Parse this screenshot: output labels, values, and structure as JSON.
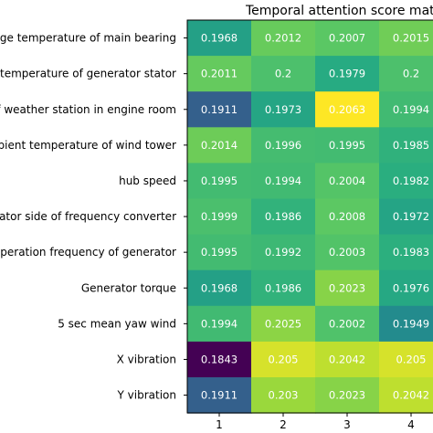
{
  "chart_data": {
    "type": "heatmap",
    "title": "Temporal attention score matr",
    "rows": [
      "rage temperature of main bearing",
      "e temperature of generator stator",
      "of weather station in engine room",
      "mbient temperature of wind tower",
      "hub speed",
      "erator side of frequency converter",
      "operation frequency of generator",
      "Generator torque",
      "5 sec mean yaw wind",
      "X vibration",
      "Y vibration"
    ],
    "columns": [
      "1",
      "2",
      "3",
      "4"
    ],
    "values": [
      [
        0.1968,
        0.2012,
        0.2007,
        0.2015
      ],
      [
        0.2011,
        0.2,
        0.1979,
        0.2
      ],
      [
        0.1911,
        0.1973,
        0.2063,
        0.1994
      ],
      [
        0.2014,
        0.1996,
        0.1995,
        0.1985
      ],
      [
        0.1995,
        0.1994,
        0.2004,
        0.1982
      ],
      [
        0.1999,
        0.1986,
        0.2008,
        0.1972
      ],
      [
        0.1995,
        0.1992,
        0.2003,
        0.1983
      ],
      [
        0.1968,
        0.1986,
        0.2023,
        0.1976
      ],
      [
        0.1994,
        0.2025,
        0.2002,
        0.1949
      ],
      [
        0.1843,
        0.205,
        0.2042,
        0.205
      ],
      [
        0.1911,
        0.203,
        0.2023,
        0.2042
      ]
    ],
    "value_labels": [
      [
        "0.1968",
        "0.2012",
        "0.2007",
        "0.2015"
      ],
      [
        "0.2011",
        "0.2",
        "0.1979",
        "0.2"
      ],
      [
        "0.1911",
        "0.1973",
        "0.2063",
        "0.1994"
      ],
      [
        "0.2014",
        "0.1996",
        "0.1995",
        "0.1985"
      ],
      [
        "0.1995",
        "0.1994",
        "0.2004",
        "0.1982"
      ],
      [
        "0.1999",
        "0.1986",
        "0.2008",
        "0.1972"
      ],
      [
        "0.1995",
        "0.1992",
        "0.2003",
        "0.1983"
      ],
      [
        "0.1968",
        "0.1986",
        "0.2023",
        "0.1976"
      ],
      [
        "0.1994",
        "0.2025",
        "0.2002",
        "0.1949"
      ],
      [
        "0.1843",
        "0.205",
        "0.2042",
        "0.205"
      ],
      [
        "0.1911",
        "0.203",
        "0.2023",
        "0.2042"
      ]
    ],
    "colormap": "viridis",
    "vmin": 0.1843,
    "vmax": 0.2063,
    "grid": false,
    "legend": "none"
  }
}
